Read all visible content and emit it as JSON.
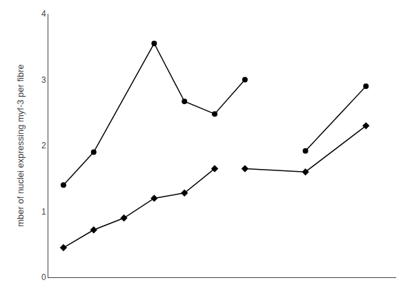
{
  "chart_data": {
    "type": "line",
    "ylabel": "mber of nuclei expressing myf-3 per fibre",
    "xlim": [
      0.5,
      12
    ],
    "xticks": [],
    "ylim": [
      0,
      4
    ],
    "yticks": [
      0,
      1,
      2,
      3,
      4
    ],
    "tick_labels": "y",
    "grid": false,
    "series": [
      {
        "color": "#000000",
        "marker": "circle",
        "line_style": "solid",
        "x": [
          1,
          2,
          4,
          5,
          6,
          7
        ],
        "values": [
          1.4,
          1.9,
          3.55,
          2.67,
          2.48,
          3.0
        ]
      },
      {
        "color": "#000000",
        "marker": "circle",
        "line_style": "solid",
        "x": [
          9,
          11
        ],
        "values": [
          1.92,
          2.9
        ]
      },
      {
        "color": "#000000",
        "marker": "diamond",
        "line_style": "solid",
        "x": [
          1,
          2,
          3,
          4,
          5,
          6
        ],
        "values": [
          0.45,
          0.72,
          0.9,
          1.2,
          1.28,
          1.65
        ]
      },
      {
        "color": "#000000",
        "marker": "diamond",
        "line_style": "solid",
        "x": [
          7,
          9,
          11
        ],
        "values": [
          1.65,
          1.6,
          2.3
        ]
      }
    ]
  }
}
